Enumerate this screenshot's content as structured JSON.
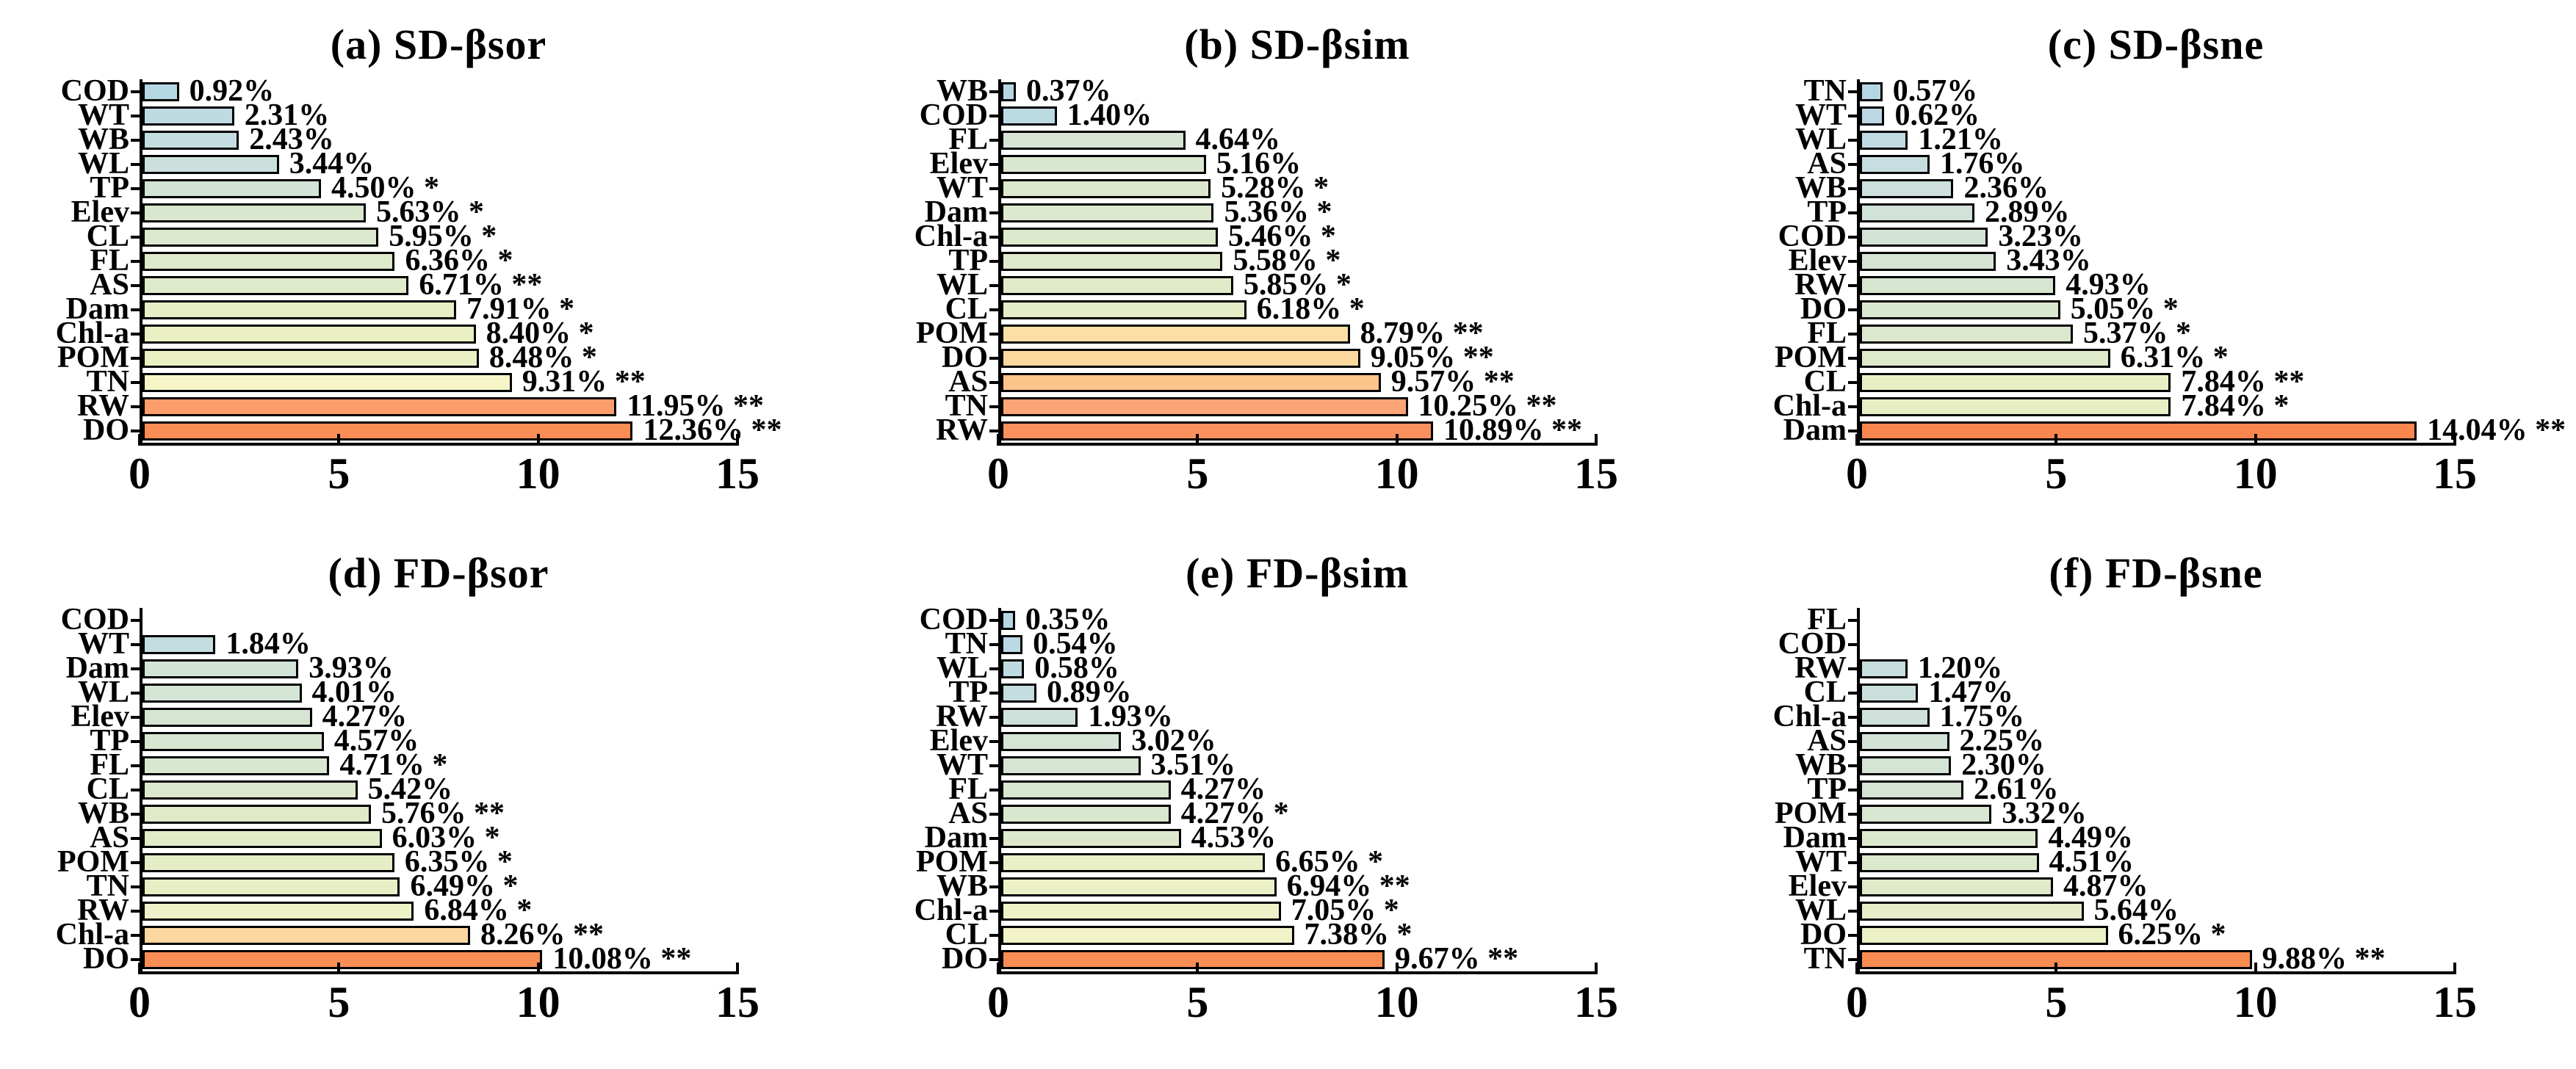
{
  "figure": {
    "background": "#ffffff",
    "axis_color": "#000000",
    "bar_border_color": "#000000"
  },
  "chart_data": [
    {
      "type": "bar",
      "panel_label": "a",
      "title": "(a) SD-βsor",
      "orientation": "horizontal",
      "xlim": [
        0,
        15
      ],
      "xticks": [
        0,
        5,
        10,
        15
      ],
      "grid": false,
      "categories": [
        "COD",
        "WT",
        "WB",
        "WL",
        "TP",
        "Elev",
        "CL",
        "FL",
        "AS",
        "Dam",
        "Chl-a",
        "POM",
        "TN",
        "RW",
        "DO"
      ],
      "values": [
        0.92,
        2.31,
        2.43,
        3.44,
        4.5,
        5.63,
        5.95,
        6.36,
        6.71,
        7.91,
        8.4,
        8.48,
        9.31,
        11.95,
        12.36
      ],
      "significance": [
        "",
        "",
        "",
        "",
        "*",
        "*",
        "*",
        "*",
        "**",
        "*",
        "*",
        "*",
        "**",
        "**",
        "**"
      ],
      "value_labels": [
        "0.92%",
        "2.31%",
        "2.43%",
        "3.44%",
        "4.50% *",
        "5.63% *",
        "5.95% *",
        "6.36% *",
        "6.71% **",
        "7.91% *",
        "8.40% *",
        "8.48% *",
        "9.31% **",
        "11.95% **",
        "12.36% **"
      ],
      "colors": [
        "#b5d7e3",
        "#bedbe2",
        "#c3dde1",
        "#cbdfdd",
        "#d2e3d7",
        "#d9e7cf",
        "#dce9cf",
        "#dfeacc",
        "#e0ebcb",
        "#e7eec5",
        "#eaf0c4",
        "#ebf0c4",
        "#f6f5c8",
        "#fb9e6b",
        "#fa8c55"
      ]
    },
    {
      "type": "bar",
      "panel_label": "b",
      "title": "(b) SD-βsim",
      "orientation": "horizontal",
      "xlim": [
        0,
        15
      ],
      "xticks": [
        0,
        5,
        10,
        15
      ],
      "grid": false,
      "categories": [
        "WB",
        "COD",
        "FL",
        "Elev",
        "WT",
        "Dam",
        "Chl-a",
        "TP",
        "WL",
        "CL",
        "POM",
        "DO",
        "AS",
        "TN",
        "RW"
      ],
      "values": [
        0.37,
        1.4,
        4.64,
        5.16,
        5.28,
        5.36,
        5.46,
        5.58,
        5.85,
        6.18,
        8.79,
        9.05,
        9.57,
        10.25,
        10.89
      ],
      "significance": [
        "",
        "",
        "",
        "",
        "*",
        "*",
        "*",
        "*",
        "*",
        "*",
        "**",
        "**",
        "**",
        "**",
        "**"
      ],
      "value_labels": [
        "0.37%",
        "1.40%",
        "4.64%",
        "5.16%",
        "5.28% *",
        "5.36% *",
        "5.46% *",
        "5.58% *",
        "5.85% *",
        "6.18% *",
        "8.79% **",
        "9.05% **",
        "9.57% **",
        "10.25% **",
        "10.89% **"
      ],
      "colors": [
        "#b5d7e3",
        "#bcdae2",
        "#d5e4d4",
        "#d9e6d0",
        "#dbe8ce",
        "#dce9ce",
        "#dde9cd",
        "#dfeacb",
        "#e1ebca",
        "#e4ecc8",
        "#fcdfa6",
        "#fcd79e",
        "#fbc489",
        "#fba476",
        "#f9915f"
      ]
    },
    {
      "type": "bar",
      "panel_label": "c",
      "title": "(c) SD-βsne",
      "orientation": "horizontal",
      "xlim": [
        0,
        15
      ],
      "xticks": [
        0,
        5,
        10,
        15
      ],
      "grid": false,
      "categories": [
        "TN",
        "WT",
        "WL",
        "AS",
        "WB",
        "TP",
        "COD",
        "Elev",
        "RW",
        "DO",
        "FL",
        "POM",
        "CL",
        "Chl-a",
        "Dam"
      ],
      "values": [
        0.57,
        0.62,
        1.21,
        1.76,
        2.36,
        2.89,
        3.23,
        3.43,
        4.93,
        5.05,
        5.37,
        6.31,
        7.84,
        7.84,
        14.04
      ],
      "significance": [
        "",
        "",
        "",
        "",
        "",
        "",
        "",
        "",
        "",
        "*",
        "*",
        "*",
        "**",
        "*",
        "**"
      ],
      "value_labels": [
        "0.57%",
        "0.62%",
        "1.21%",
        "1.76%",
        "2.36%",
        "2.89%",
        "3.23%",
        "3.43%",
        "4.93%",
        "5.05% *",
        "5.37% *",
        "6.31% *",
        "7.84% **",
        "7.84% *",
        "14.04% **"
      ],
      "colors": [
        "#b5d7e3",
        "#b9d8e3",
        "#c0dbe2",
        "#c7dee0",
        "#cde0dd",
        "#d1e2d9",
        "#d3e3d6",
        "#d5e4d4",
        "#d8e6d1",
        "#dae7cf",
        "#dce8ce",
        "#dfeacb",
        "#e9efc5",
        "#e9efc5",
        "#f9854f"
      ]
    },
    {
      "type": "bar",
      "panel_label": "d",
      "title": "(d) FD-βsor",
      "orientation": "horizontal",
      "xlim": [
        0,
        15
      ],
      "xticks": [
        0,
        5,
        10,
        15
      ],
      "grid": false,
      "categories": [
        "COD",
        "WT",
        "Dam",
        "WL",
        "Elev",
        "TP",
        "FL",
        "CL",
        "WB",
        "AS",
        "POM",
        "TN",
        "RW",
        "Chl-a",
        "DO"
      ],
      "values": [
        null,
        1.84,
        3.93,
        4.01,
        4.27,
        4.57,
        4.71,
        5.42,
        5.76,
        6.03,
        6.35,
        6.49,
        6.84,
        8.26,
        10.08
      ],
      "significance": [
        "",
        "",
        "",
        "",
        "",
        "",
        "*",
        "",
        "**",
        "*",
        "*",
        "*",
        "*",
        "**",
        "**"
      ],
      "value_labels": [
        "",
        "1.84%",
        "3.93%",
        "4.01%",
        "4.27%",
        "4.57%",
        "4.71% *",
        "5.42%",
        "5.76% **",
        "6.03% *",
        "6.35% *",
        "6.49% *",
        "6.84% *",
        "8.26% **",
        "10.08% **"
      ],
      "colors": [
        null,
        "#c3dde1",
        "#d2e3d7",
        "#d4e4d5",
        "#d6e5d2",
        "#d8e6d1",
        "#dae7cf",
        "#dde9cc",
        "#e0eac9",
        "#e2ecc8",
        "#e5edc6",
        "#e7eec5",
        "#edf1c7",
        "#fcd7a0",
        "#f98f55"
      ]
    },
    {
      "type": "bar",
      "panel_label": "e",
      "title": "(e) FD-βsim",
      "orientation": "horizontal",
      "xlim": [
        0,
        15
      ],
      "xticks": [
        0,
        5,
        10,
        15
      ],
      "grid": false,
      "categories": [
        "COD",
        "TN",
        "WL",
        "TP",
        "RW",
        "Elev",
        "WT",
        "FL",
        "AS",
        "Dam",
        "POM",
        "WB",
        "Chl-a",
        "CL",
        "DO"
      ],
      "values": [
        0.35,
        0.54,
        0.58,
        0.89,
        1.93,
        3.02,
        3.51,
        4.27,
        4.27,
        4.53,
        6.65,
        6.94,
        7.05,
        7.38,
        9.67
      ],
      "significance": [
        "",
        "",
        "",
        "",
        "",
        "",
        "",
        "",
        "*",
        "",
        "*",
        "**",
        "*",
        "*",
        "**"
      ],
      "value_labels": [
        "0.35%",
        "0.54%",
        "0.58%",
        "0.89%",
        "1.93%",
        "3.02%",
        "3.51%",
        "4.27%",
        "4.27% *",
        "4.53%",
        "6.65% *",
        "6.94% **",
        "7.05% *",
        "7.38% *",
        "9.67% **"
      ],
      "colors": [
        "#b5d7e3",
        "#bad9e3",
        "#bedbe2",
        "#c4dde1",
        "#cfe1db",
        "#d4e4d5",
        "#d7e5d2",
        "#d9e6d0",
        "#dae7cf",
        "#dde8cd",
        "#e9efc6",
        "#ecf0c6",
        "#eff2c7",
        "#f2f3c8",
        "#f98e54"
      ]
    },
    {
      "type": "bar",
      "panel_label": "f",
      "title": "(f) FD-βsne",
      "orientation": "horizontal",
      "xlim": [
        0,
        15
      ],
      "xticks": [
        0,
        5,
        10,
        15
      ],
      "grid": false,
      "categories": [
        "FL",
        "COD",
        "RW",
        "CL",
        "Chl-a",
        "AS",
        "WB",
        "TP",
        "POM",
        "Dam",
        "WT",
        "Elev",
        "WL",
        "DO",
        "TN"
      ],
      "values": [
        null,
        null,
        1.2,
        1.47,
        1.75,
        2.25,
        2.3,
        2.61,
        3.32,
        4.49,
        4.51,
        4.87,
        5.64,
        6.25,
        9.88
      ],
      "significance": [
        "",
        "",
        "",
        "",
        "",
        "",
        "",
        "",
        "",
        "",
        "",
        "",
        "",
        "*",
        "**"
      ],
      "value_labels": [
        "",
        "",
        "1.20%",
        "1.47%",
        "1.75%",
        "2.25%",
        "2.30%",
        "2.61%",
        "3.32%",
        "4.49%",
        "4.51%",
        "4.87%",
        "5.64%",
        "6.25% *",
        "9.88% **"
      ],
      "colors": [
        null,
        null,
        "#c8dfdf",
        "#cbe0dd",
        "#cfe1da",
        "#d3e3d7",
        "#d4e4d5",
        "#d6e5d3",
        "#d9e6d1",
        "#dde9ce",
        "#dde9cd",
        "#e0eacb",
        "#e6edc8",
        "#ebf0c7",
        "#f98c52"
      ]
    }
  ]
}
